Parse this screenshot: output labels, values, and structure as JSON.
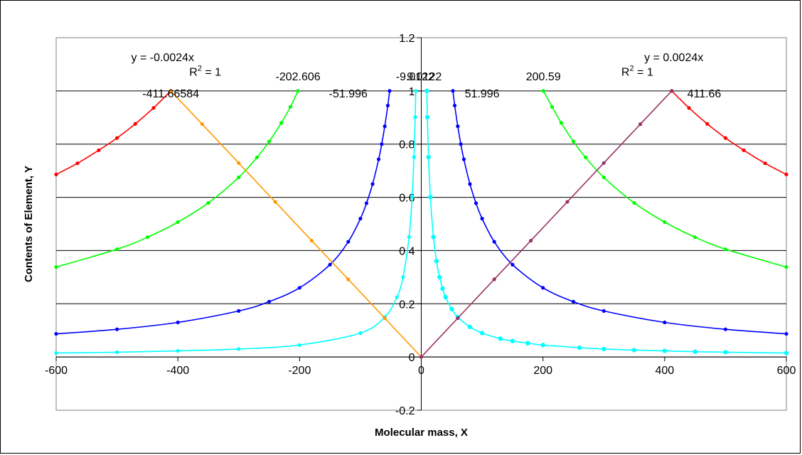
{
  "chart_data": {
    "type": "scatter",
    "title": "",
    "xlabel": "Molecular mass, X",
    "ylabel": "Contents of Element, Y",
    "xlim": [
      -600,
      600
    ],
    "ylim": [
      -0.2,
      1.2
    ],
    "x_ticks": [
      "-600",
      "-400",
      "-200",
      "0",
      "200",
      "400",
      "600"
    ],
    "x_tick_values": [
      -600,
      -400,
      -200,
      0,
      200,
      400,
      600
    ],
    "y_ticks": [
      "-0.2",
      "0",
      "0.2",
      "0.4",
      "0.6",
      "0.8",
      "1",
      "1.2"
    ],
    "y_tick_values": [
      -0.2,
      0,
      0.2,
      0.4,
      0.6,
      0.8,
      1,
      1.2
    ],
    "grid": "horizontal",
    "legend": "none",
    "series": [
      {
        "color": "#FF0000",
        "style": "curve-markers",
        "x": [
          -600,
          -565,
          -530,
          -500,
          -470,
          -440,
          -411.66584
        ],
        "y": [
          0.686,
          0.728,
          0.777,
          0.823,
          0.876,
          0.936,
          1.0
        ]
      },
      {
        "color": "#FF0000",
        "style": "curve-markers",
        "x": [
          411.66,
          440,
          470,
          500,
          530,
          565,
          600
        ],
        "y": [
          1.0,
          0.936,
          0.876,
          0.823,
          0.777,
          0.728,
          0.686
        ]
      },
      {
        "color": "#00FF00",
        "style": "curve-markers",
        "x": [
          -600,
          -500,
          -450,
          -400,
          -350,
          -300,
          -270,
          -250,
          -230,
          -215,
          -202.606
        ],
        "y": [
          0.338,
          0.405,
          0.45,
          0.507,
          0.579,
          0.675,
          0.75,
          0.81,
          0.88,
          0.94,
          1.0
        ]
      },
      {
        "color": "#00FF00",
        "style": "curve-markers",
        "x": [
          200.59,
          215,
          230,
          250,
          270,
          300,
          350,
          400,
          450,
          500,
          600
        ],
        "y": [
          1.0,
          0.94,
          0.88,
          0.81,
          0.75,
          0.675,
          0.579,
          0.507,
          0.45,
          0.405,
          0.338
        ]
      },
      {
        "color": "#0000FF",
        "style": "curve-markers",
        "x": [
          -600,
          -500,
          -400,
          -300,
          -250,
          -200,
          -150,
          -120,
          -100,
          -90,
          -80,
          -70,
          -65,
          -60,
          -55,
          -51.996
        ],
        "y": [
          0.087,
          0.104,
          0.13,
          0.173,
          0.208,
          0.26,
          0.347,
          0.433,
          0.52,
          0.578,
          0.65,
          0.743,
          0.8,
          0.867,
          0.945,
          1.0
        ]
      },
      {
        "color": "#0000FF",
        "style": "curve-markers",
        "x": [
          51.996,
          55,
          60,
          65,
          70,
          80,
          90,
          100,
          120,
          150,
          200,
          250,
          300,
          400,
          500,
          600
        ],
        "y": [
          1.0,
          0.945,
          0.867,
          0.8,
          0.743,
          0.65,
          0.578,
          0.52,
          0.433,
          0.347,
          0.26,
          0.208,
          0.173,
          0.13,
          0.104,
          0.087
        ]
      },
      {
        "color": "#00FFFF",
        "style": "curve-markers",
        "x": [
          -600,
          -500,
          -400,
          -300,
          -200,
          -100,
          -60,
          -40,
          -30,
          -20,
          -15,
          -12,
          -10,
          -9.0122
        ],
        "y": [
          0.015,
          0.018,
          0.023,
          0.03,
          0.045,
          0.09,
          0.15,
          0.225,
          0.3,
          0.451,
          0.601,
          0.751,
          0.901,
          1.0
        ]
      },
      {
        "color": "#00FFFF",
        "style": "curve-markers",
        "x": [
          9.0122,
          10,
          12,
          15,
          20,
          25,
          30,
          35,
          40,
          50,
          60,
          80,
          100,
          130,
          150,
          175,
          200,
          260,
          300,
          350,
          400,
          450,
          500,
          600
        ],
        "y": [
          1.0,
          0.901,
          0.751,
          0.601,
          0.451,
          0.36,
          0.3,
          0.257,
          0.225,
          0.18,
          0.15,
          0.113,
          0.09,
          0.069,
          0.06,
          0.052,
          0.045,
          0.035,
          0.03,
          0.026,
          0.023,
          0.02,
          0.018,
          0.015
        ]
      },
      {
        "color": "#FF9900",
        "style": "line-markers",
        "x": [
          -411.66584,
          -360,
          -300,
          -240,
          -180,
          -120,
          -60,
          0
        ],
        "y": [
          1.0,
          0.875,
          0.729,
          0.583,
          0.437,
          0.292,
          0.146,
          0.0
        ]
      },
      {
        "color": "#993366",
        "style": "line-markers",
        "x": [
          0,
          60,
          120,
          180,
          240,
          300,
          360,
          411.66
        ],
        "y": [
          0.0,
          0.146,
          0.292,
          0.437,
          0.583,
          0.729,
          0.875,
          1.0
        ]
      }
    ],
    "annotations": [
      {
        "text": "y = -0.0024x",
        "x": -425,
        "y": 1.112
      },
      {
        "text": "R",
        "sup": "2",
        "after": " = 1",
        "x": -355,
        "y": 1.057
      },
      {
        "text": "-411.66584",
        "x": -411.66584,
        "y": 0.975
      },
      {
        "text": "-202.606",
        "x": -202.606,
        "y": 1.04
      },
      {
        "text": "-51.996",
        "x": -120,
        "y": 0.975
      },
      {
        "text": "-9.0122",
        "x": -10,
        "y": 1.04
      },
      {
        "text": "9.0122",
        "x": 5,
        "y": 1.04
      },
      {
        "text": "51.996",
        "x": 100,
        "y": 0.975
      },
      {
        "text": "200.59",
        "x": 200.59,
        "y": 1.04
      },
      {
        "text": "y = 0.0024x",
        "x": 415,
        "y": 1.112
      },
      {
        "text": "R",
        "sup": "2",
        "after": " = 1",
        "x": 355,
        "y": 1.057
      },
      {
        "text": "411.66",
        "x": 465,
        "y": 0.975
      }
    ]
  }
}
